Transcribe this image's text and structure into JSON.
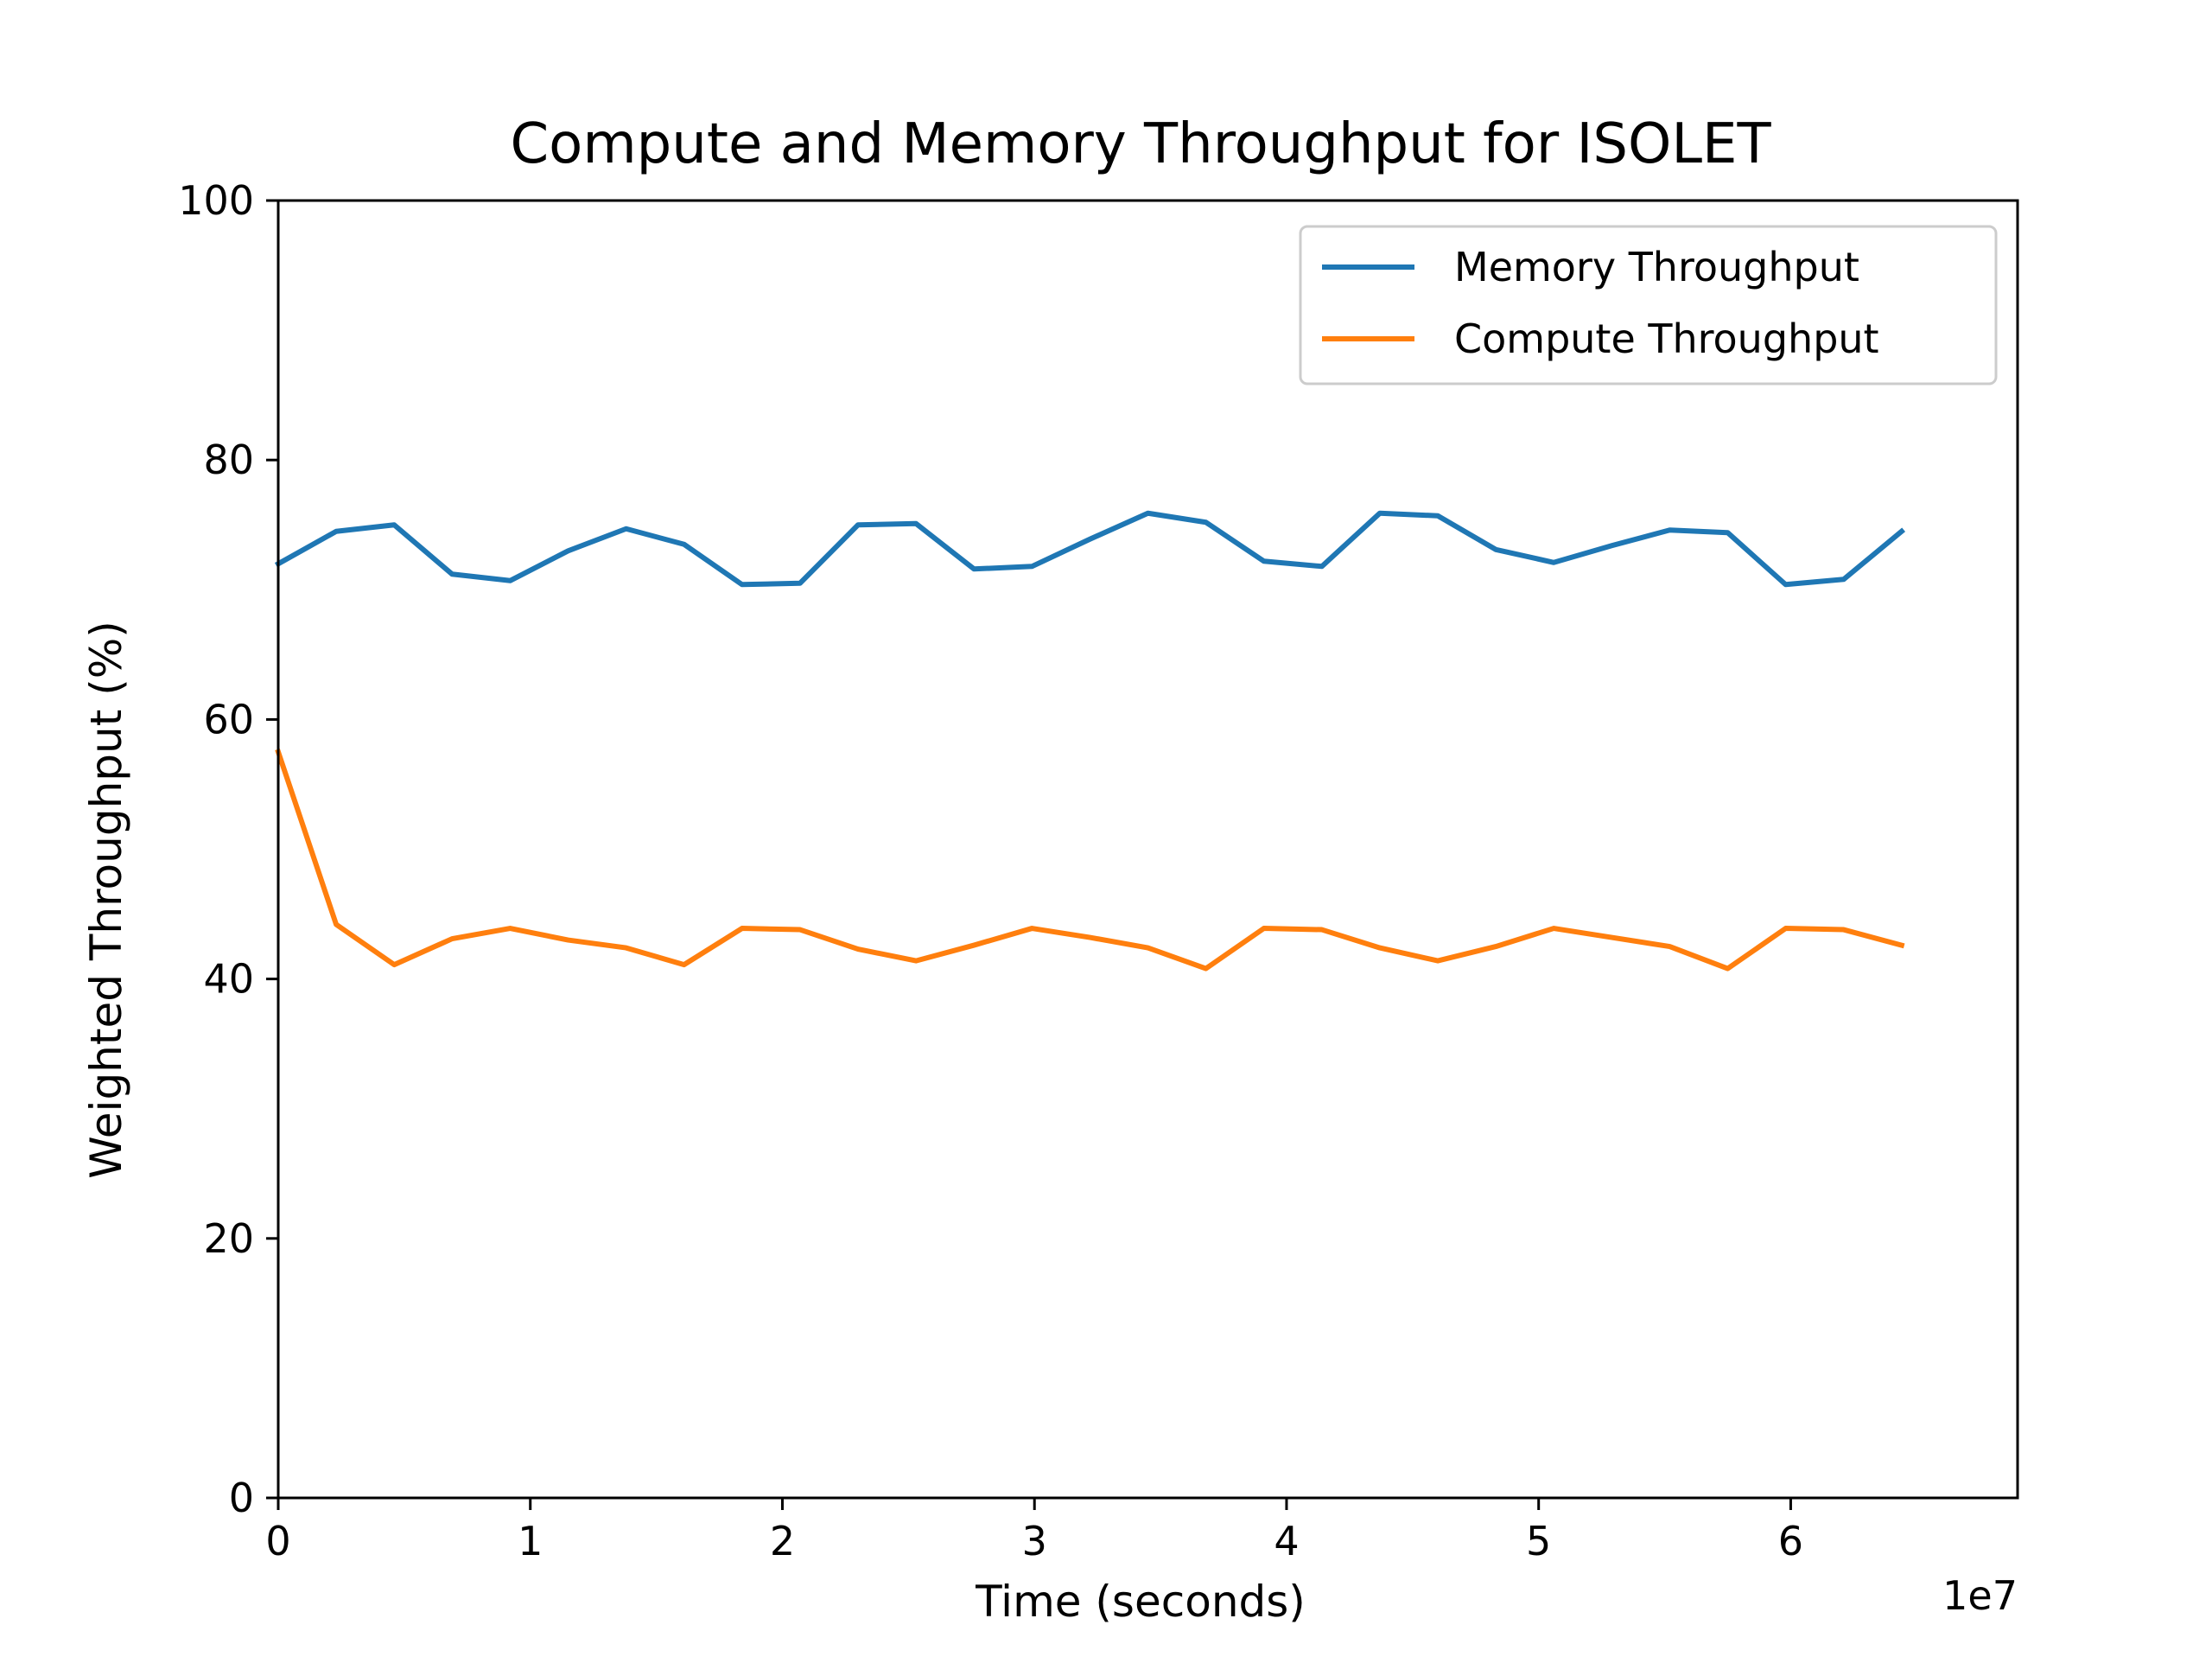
{
  "chart_data": {
    "type": "line",
    "title": "Compute and Memory Throughput for ISOLET",
    "xlabel": "Time (seconds)",
    "ylabel": "Weighted Throughput (%)",
    "x_offset_text": "1e7",
    "x_scale": 10000000,
    "xlim": [
      0,
      69000000
    ],
    "ylim": [
      0,
      100
    ],
    "x_ticks": [
      0,
      10000000,
      20000000,
      30000000,
      40000000,
      50000000,
      60000000
    ],
    "x_tick_labels": [
      "0",
      "1",
      "2",
      "3",
      "4",
      "5",
      "6"
    ],
    "y_ticks": [
      0,
      20,
      40,
      60,
      80,
      100
    ],
    "y_tick_labels": [
      "0",
      "20",
      "40",
      "60",
      "80",
      "100"
    ],
    "grid": false,
    "legend_position": "upper right",
    "x": [
      0,
      2300000,
      4600000,
      6900000,
      9200000,
      11500000,
      13800000,
      16100000,
      18400000,
      20700000,
      23000000,
      25300000,
      27600000,
      29900000,
      32200000,
      34500000,
      36800000,
      39100000,
      41400000,
      43700000,
      46000000,
      48300000,
      50600000,
      52900000,
      55200000,
      57500000,
      59800000,
      62100000,
      64400000
    ],
    "series": [
      {
        "name": "Memory Throughput",
        "color": "#1f77b4",
        "values": [
          72.0,
          74.5,
          75.0,
          71.2,
          70.7,
          73.0,
          74.7,
          73.5,
          70.4,
          70.5,
          75.0,
          75.1,
          71.6,
          71.8,
          73.9,
          75.9,
          75.2,
          72.2,
          71.8,
          75.9,
          75.7,
          73.1,
          72.1,
          73.4,
          74.6,
          74.4,
          70.4,
          70.8,
          74.5
        ]
      },
      {
        "name": "Compute Throughput",
        "color": "#ff7f0e",
        "values": [
          57.5,
          44.2,
          41.1,
          43.1,
          43.9,
          43.0,
          42.4,
          41.1,
          43.9,
          43.8,
          42.3,
          41.4,
          42.6,
          43.9,
          43.2,
          42.4,
          40.8,
          43.9,
          43.8,
          42.4,
          41.4,
          42.5,
          43.9,
          43.2,
          42.5,
          40.8,
          43.9,
          43.8,
          42.6
        ]
      }
    ]
  }
}
